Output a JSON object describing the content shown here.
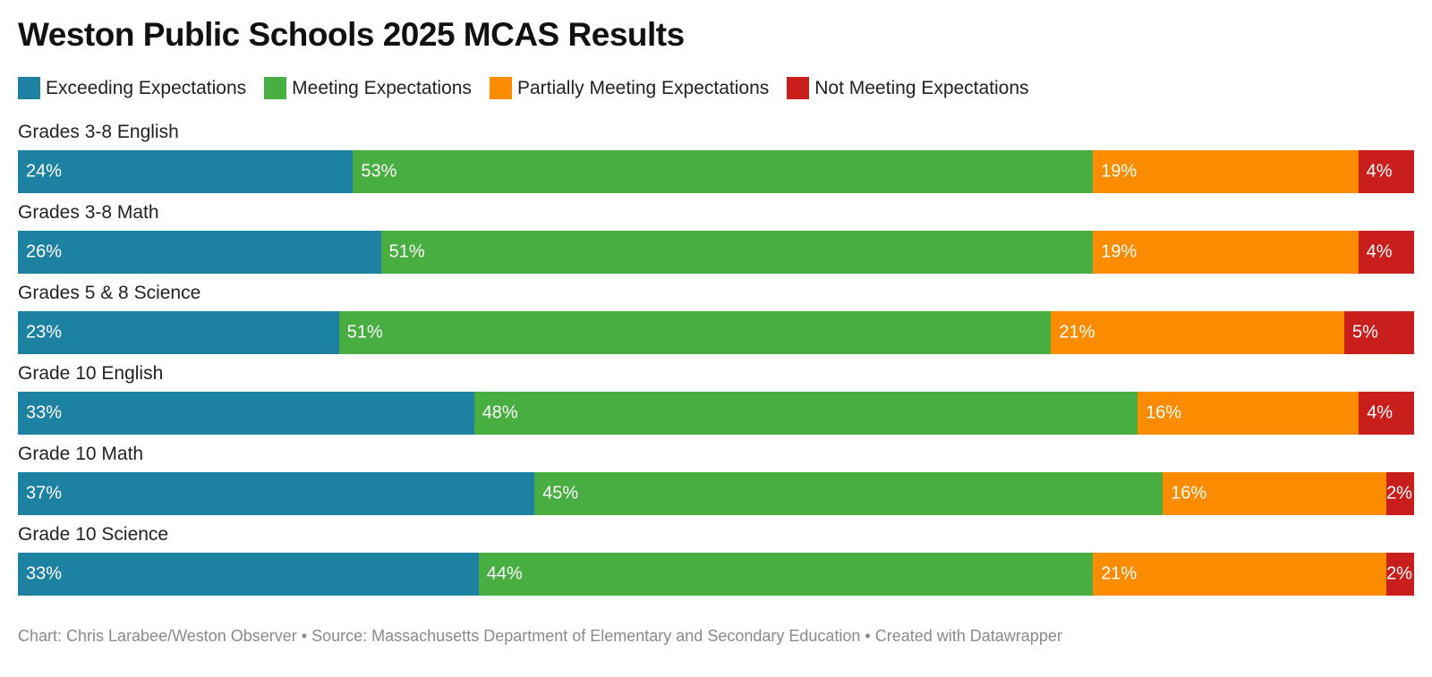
{
  "title": "Weston Public Schools 2025 MCAS Results",
  "footer": "Chart: Chris Larabee/Weston Observer • Source: Massachusetts Department of Elementary and Secondary Education • Created with Datawrapper",
  "chart_data": {
    "type": "bar",
    "orientation": "horizontal",
    "stacked": true,
    "title": "Weston Public Schools 2025 MCAS Results",
    "xlabel": "",
    "ylabel": "",
    "value_suffix": "%",
    "legend_position": "top-left",
    "grid": false,
    "categories": [
      "Grades 3-8 English",
      "Grades 3-8 Math",
      "Grades 5 & 8 Science",
      "Grade 10 English",
      "Grade 10 Math",
      "Grade 10 Science"
    ],
    "series": [
      {
        "name": "Exceeding Expectations",
        "color": "#1d81a2",
        "values": [
          24,
          26,
          23,
          33,
          37,
          33
        ]
      },
      {
        "name": "Meeting Expectations",
        "color": "#48ae41",
        "values": [
          53,
          51,
          51,
          48,
          45,
          44
        ]
      },
      {
        "name": "Partially Meeting Expectations",
        "color": "#fb8c00",
        "values": [
          19,
          19,
          21,
          16,
          16,
          21
        ]
      },
      {
        "name": "Not Meeting Expectations",
        "color": "#c81f1d",
        "values": [
          4,
          4,
          5,
          4,
          2,
          2
        ]
      }
    ]
  }
}
